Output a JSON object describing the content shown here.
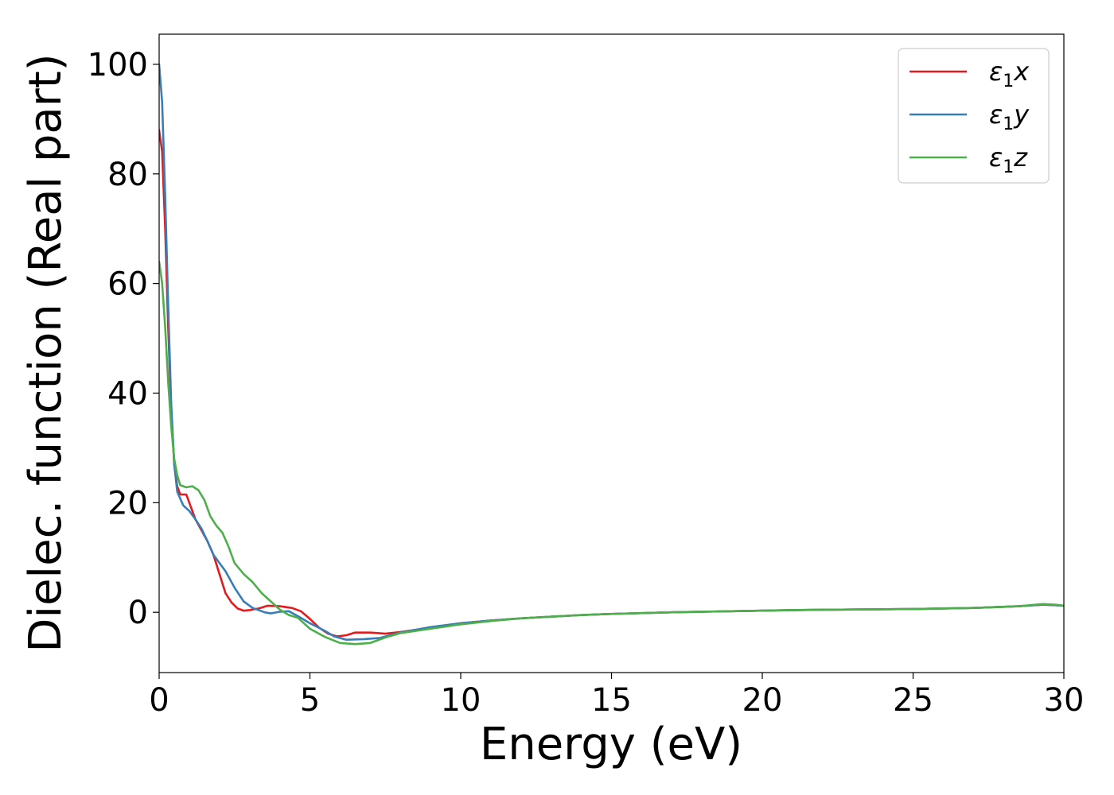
{
  "chart_data": {
    "type": "line",
    "xlabel": "Energy (eV)",
    "ylabel": "Dielec. function (Real part)",
    "xlim": [
      0,
      30
    ],
    "ylim": [
      -11,
      105.5
    ],
    "x_ticks": [
      "0",
      "5",
      "10",
      "15",
      "20",
      "25",
      "30"
    ],
    "x_tick_values": [
      0,
      5,
      10,
      15,
      20,
      25,
      30
    ],
    "y_ticks": [
      "0",
      "20",
      "40",
      "60",
      "80",
      "100"
    ],
    "y_tick_values": [
      0,
      20,
      40,
      60,
      80,
      100
    ],
    "grid": false,
    "legend_position": "top-right",
    "series": [
      {
        "name": "ε1x",
        "legend_main": "ε",
        "legend_sub": "1",
        "legend_var": "x",
        "color": "#e41a1c",
        "points": [
          [
            0,
            88
          ],
          [
            0.1,
            84
          ],
          [
            0.2,
            70
          ],
          [
            0.3,
            52
          ],
          [
            0.4,
            37
          ],
          [
            0.5,
            27
          ],
          [
            0.6,
            23
          ],
          [
            0.7,
            21.5
          ],
          [
            0.9,
            21.5
          ],
          [
            1.0,
            20
          ],
          [
            1.2,
            17
          ],
          [
            1.4,
            15
          ],
          [
            1.6,
            13
          ],
          [
            1.8,
            10.5
          ],
          [
            2.0,
            7
          ],
          [
            2.2,
            3.5
          ],
          [
            2.4,
            1.8
          ],
          [
            2.6,
            0.7
          ],
          [
            2.8,
            0.3
          ],
          [
            3.0,
            0.4
          ],
          [
            3.3,
            0.7
          ],
          [
            3.6,
            1.2
          ],
          [
            4.0,
            1.1
          ],
          [
            4.4,
            0.8
          ],
          [
            4.7,
            0.2
          ],
          [
            5.0,
            -1.2
          ],
          [
            5.3,
            -2.8
          ],
          [
            5.6,
            -3.9
          ],
          [
            5.9,
            -4.4
          ],
          [
            6.2,
            -4.2
          ],
          [
            6.5,
            -3.7
          ],
          [
            7.0,
            -3.7
          ],
          [
            7.5,
            -3.9
          ],
          [
            8.0,
            -3.6
          ],
          [
            9.0,
            -2.8
          ],
          [
            10,
            -2.0
          ],
          [
            11,
            -1.5
          ],
          [
            12,
            -1.1
          ],
          [
            13,
            -0.8
          ],
          [
            14,
            -0.5
          ],
          [
            15,
            -0.3
          ],
          [
            17,
            0.0
          ],
          [
            19,
            0.2
          ],
          [
            21,
            0.4
          ],
          [
            23,
            0.5
          ],
          [
            25,
            0.6
          ],
          [
            27,
            0.8
          ],
          [
            28.5,
            1.1
          ],
          [
            29.3,
            1.4
          ],
          [
            29.7,
            1.3
          ],
          [
            30,
            1.2
          ]
        ]
      },
      {
        "name": "ε1y",
        "legend_main": "ε",
        "legend_sub": "1",
        "legend_var": "y",
        "color": "#377eb8",
        "points": [
          [
            0,
            100
          ],
          [
            0.1,
            93
          ],
          [
            0.2,
            76
          ],
          [
            0.3,
            56
          ],
          [
            0.4,
            38
          ],
          [
            0.5,
            27
          ],
          [
            0.6,
            22
          ],
          [
            0.8,
            19.5
          ],
          [
            1.0,
            18.5
          ],
          [
            1.2,
            17
          ],
          [
            1.4,
            15.3
          ],
          [
            1.6,
            13
          ],
          [
            1.8,
            10.5
          ],
          [
            2.0,
            9
          ],
          [
            2.2,
            7.5
          ],
          [
            2.5,
            4.5
          ],
          [
            2.8,
            2
          ],
          [
            3.1,
            0.8
          ],
          [
            3.5,
            0.0
          ],
          [
            3.7,
            -0.2
          ],
          [
            4.0,
            0.1
          ],
          [
            4.3,
            0.2
          ],
          [
            4.6,
            -0.7
          ],
          [
            5.0,
            -2.0
          ],
          [
            5.5,
            -3.4
          ],
          [
            5.8,
            -4.4
          ],
          [
            6.2,
            -5.0
          ],
          [
            6.8,
            -4.9
          ],
          [
            7.3,
            -4.7
          ],
          [
            8.0,
            -3.7
          ],
          [
            9.0,
            -2.7
          ],
          [
            10,
            -2.0
          ],
          [
            11,
            -1.5
          ],
          [
            12,
            -1.1
          ],
          [
            13,
            -0.8
          ],
          [
            14,
            -0.5
          ],
          [
            15,
            -0.3
          ],
          [
            17,
            0.0
          ],
          [
            19,
            0.2
          ],
          [
            21,
            0.4
          ],
          [
            23,
            0.5
          ],
          [
            25,
            0.6
          ],
          [
            27,
            0.8
          ],
          [
            28.5,
            1.1
          ],
          [
            29.3,
            1.4
          ],
          [
            29.7,
            1.3
          ],
          [
            30,
            1.2
          ]
        ]
      },
      {
        "name": "ε1z",
        "legend_main": "ε",
        "legend_sub": "1",
        "legend_var": "z",
        "color": "#4daf4a",
        "points": [
          [
            0,
            64
          ],
          [
            0.1,
            60
          ],
          [
            0.2,
            52
          ],
          [
            0.3,
            42
          ],
          [
            0.4,
            34
          ],
          [
            0.5,
            28
          ],
          [
            0.6,
            25
          ],
          [
            0.7,
            23.2
          ],
          [
            0.9,
            22.8
          ],
          [
            1.1,
            23
          ],
          [
            1.3,
            22.3
          ],
          [
            1.5,
            20.5
          ],
          [
            1.7,
            17.5
          ],
          [
            1.9,
            15.8
          ],
          [
            2.1,
            14.5
          ],
          [
            2.3,
            12
          ],
          [
            2.5,
            9
          ],
          [
            2.8,
            7
          ],
          [
            3.1,
            5.5
          ],
          [
            3.4,
            3.5
          ],
          [
            3.7,
            2
          ],
          [
            4.0,
            0.5
          ],
          [
            4.3,
            -0.5
          ],
          [
            4.6,
            -1.0
          ],
          [
            5.0,
            -3.0
          ],
          [
            5.5,
            -4.5
          ],
          [
            6.0,
            -5.6
          ],
          [
            6.5,
            -5.8
          ],
          [
            7.0,
            -5.6
          ],
          [
            7.5,
            -4.6
          ],
          [
            8.0,
            -3.8
          ],
          [
            9.0,
            -3.0
          ],
          [
            10,
            -2.2
          ],
          [
            11,
            -1.6
          ],
          [
            12,
            -1.1
          ],
          [
            13,
            -0.8
          ],
          [
            14,
            -0.5
          ],
          [
            15,
            -0.3
          ],
          [
            17,
            0.0
          ],
          [
            19,
            0.2
          ],
          [
            21,
            0.4
          ],
          [
            23,
            0.5
          ],
          [
            25,
            0.6
          ],
          [
            27,
            0.8
          ],
          [
            28.5,
            1.1
          ],
          [
            29.3,
            1.5
          ],
          [
            29.7,
            1.4
          ],
          [
            30,
            1.2
          ]
        ]
      }
    ]
  }
}
